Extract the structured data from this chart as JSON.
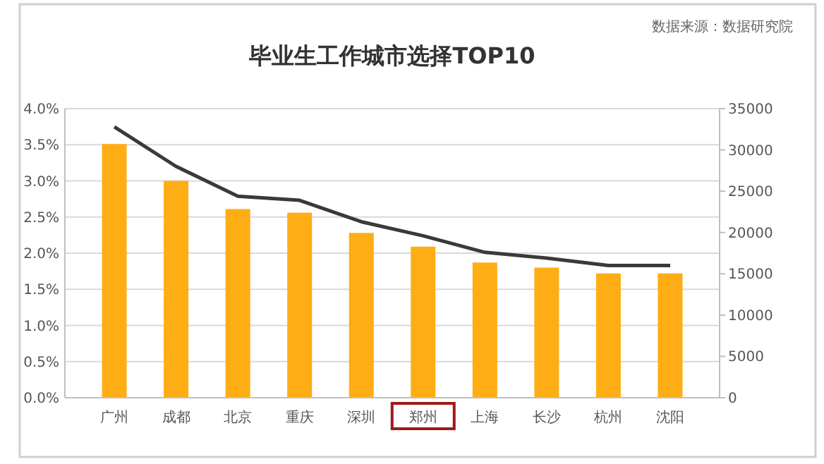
{
  "chart_data": {
    "type": "bar",
    "title": "毕业生工作城市选择TOP10",
    "annotations": [
      "数据来源：数据研究院"
    ],
    "categories": [
      "广州",
      "成都",
      "北京",
      "重庆",
      "深圳",
      "郑州",
      "上海",
      "长沙",
      "杭州",
      "沈阳"
    ],
    "series": [
      {
        "color": "#ffad14",
        "values": [
          3.51,
          3.0,
          2.61,
          2.56,
          2.28,
          2.09,
          1.87,
          1.8,
          1.72,
          1.72
        ]
      },
      {
        "type": "line",
        "axis": "y2",
        "color": "#3a3a3a",
        "values": [
          32800,
          28000,
          24400,
          23900,
          21300,
          19600,
          17600,
          16900,
          16000,
          16000
        ]
      }
    ],
    "ylim": [
      0,
      4
    ],
    "yticks": [
      {
        "value": 0,
        "label": "0.0%"
      },
      {
        "value": 0.5,
        "label": "0.5%"
      },
      {
        "value": 1,
        "label": "1.0%"
      },
      {
        "value": 1.5,
        "label": "1.5%"
      },
      {
        "value": 2,
        "label": "2.0%"
      },
      {
        "value": 2.5,
        "label": "2.5%"
      },
      {
        "value": 3,
        "label": "3.0%"
      },
      {
        "value": 3.5,
        "label": "3.5%"
      },
      {
        "value": 4,
        "label": "4.0%"
      }
    ],
    "y2lim": [
      0,
      35000
    ],
    "y2ticks": [
      0,
      5000,
      10000,
      15000,
      20000,
      25000,
      30000,
      35000
    ],
    "grid": "y",
    "marker": "none",
    "line_style": "solid"
  }
}
